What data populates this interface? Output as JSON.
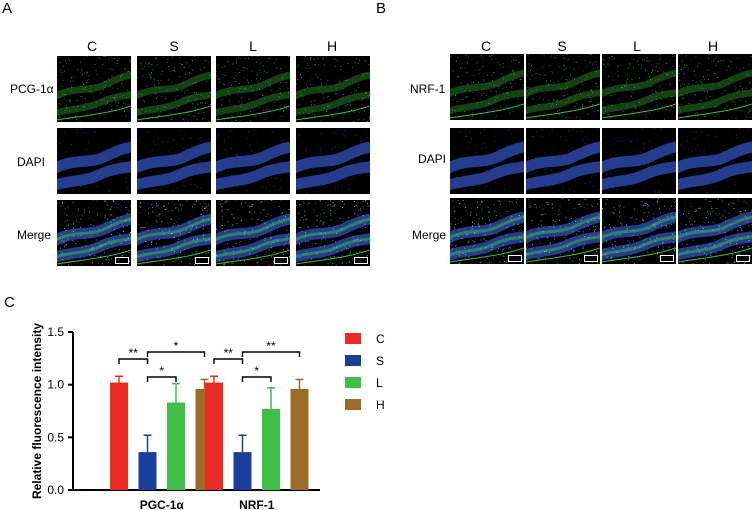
{
  "panels": {
    "A": {
      "letter": "A",
      "columns": [
        "C",
        "S",
        "L",
        "H"
      ],
      "rows": [
        "PCG-1α",
        "DAPI",
        "Merge"
      ]
    },
    "B": {
      "letter": "B",
      "columns": [
        "C",
        "S",
        "L",
        "H"
      ],
      "rows": [
        "NRF-1",
        "DAPI",
        "Merge"
      ]
    },
    "C": {
      "letter": "C"
    }
  },
  "colors": {
    "C": "#ea2b25",
    "S": "#1a3f9a",
    "L": "#3fbf48",
    "H": "#9c6b2a",
    "green_stain": "#3dbb3d",
    "blue_stain": "#2b46a8"
  },
  "chart_data": {
    "type": "bar",
    "categories": [
      "PGC-1α",
      "NRF-1"
    ],
    "series": [
      {
        "name": "C",
        "values": [
          1.02,
          1.02
        ],
        "errors": [
          0.06,
          0.06
        ]
      },
      {
        "name": "S",
        "values": [
          0.36,
          0.36
        ],
        "errors": [
          0.16,
          0.16
        ]
      },
      {
        "name": "L",
        "values": [
          0.83,
          0.77
        ],
        "errors": [
          0.18,
          0.2
        ]
      },
      {
        "name": "H",
        "values": [
          0.96,
          0.96
        ],
        "errors": [
          0.09,
          0.09
        ]
      }
    ],
    "title": "",
    "xlabel": "",
    "ylabel": "Relative fluorescence intensity",
    "ylim": [
      0,
      1.5
    ],
    "yticks": [
      "0.0",
      "0.5",
      "1.0",
      "1.5"
    ],
    "legend_position": "right",
    "significance": [
      {
        "category": "PGC-1α",
        "from": "C",
        "to": "S",
        "label": "**"
      },
      {
        "category": "PGC-1α",
        "from": "S",
        "to": "L",
        "label": "*"
      },
      {
        "category": "PGC-1α",
        "from": "S",
        "to": "H",
        "label": "*"
      },
      {
        "category": "NRF-1",
        "from": "C",
        "to": "S",
        "label": "**"
      },
      {
        "category": "NRF-1",
        "from": "S",
        "to": "L",
        "label": "*"
      },
      {
        "category": "NRF-1",
        "from": "S",
        "to": "H",
        "label": "**"
      }
    ]
  }
}
